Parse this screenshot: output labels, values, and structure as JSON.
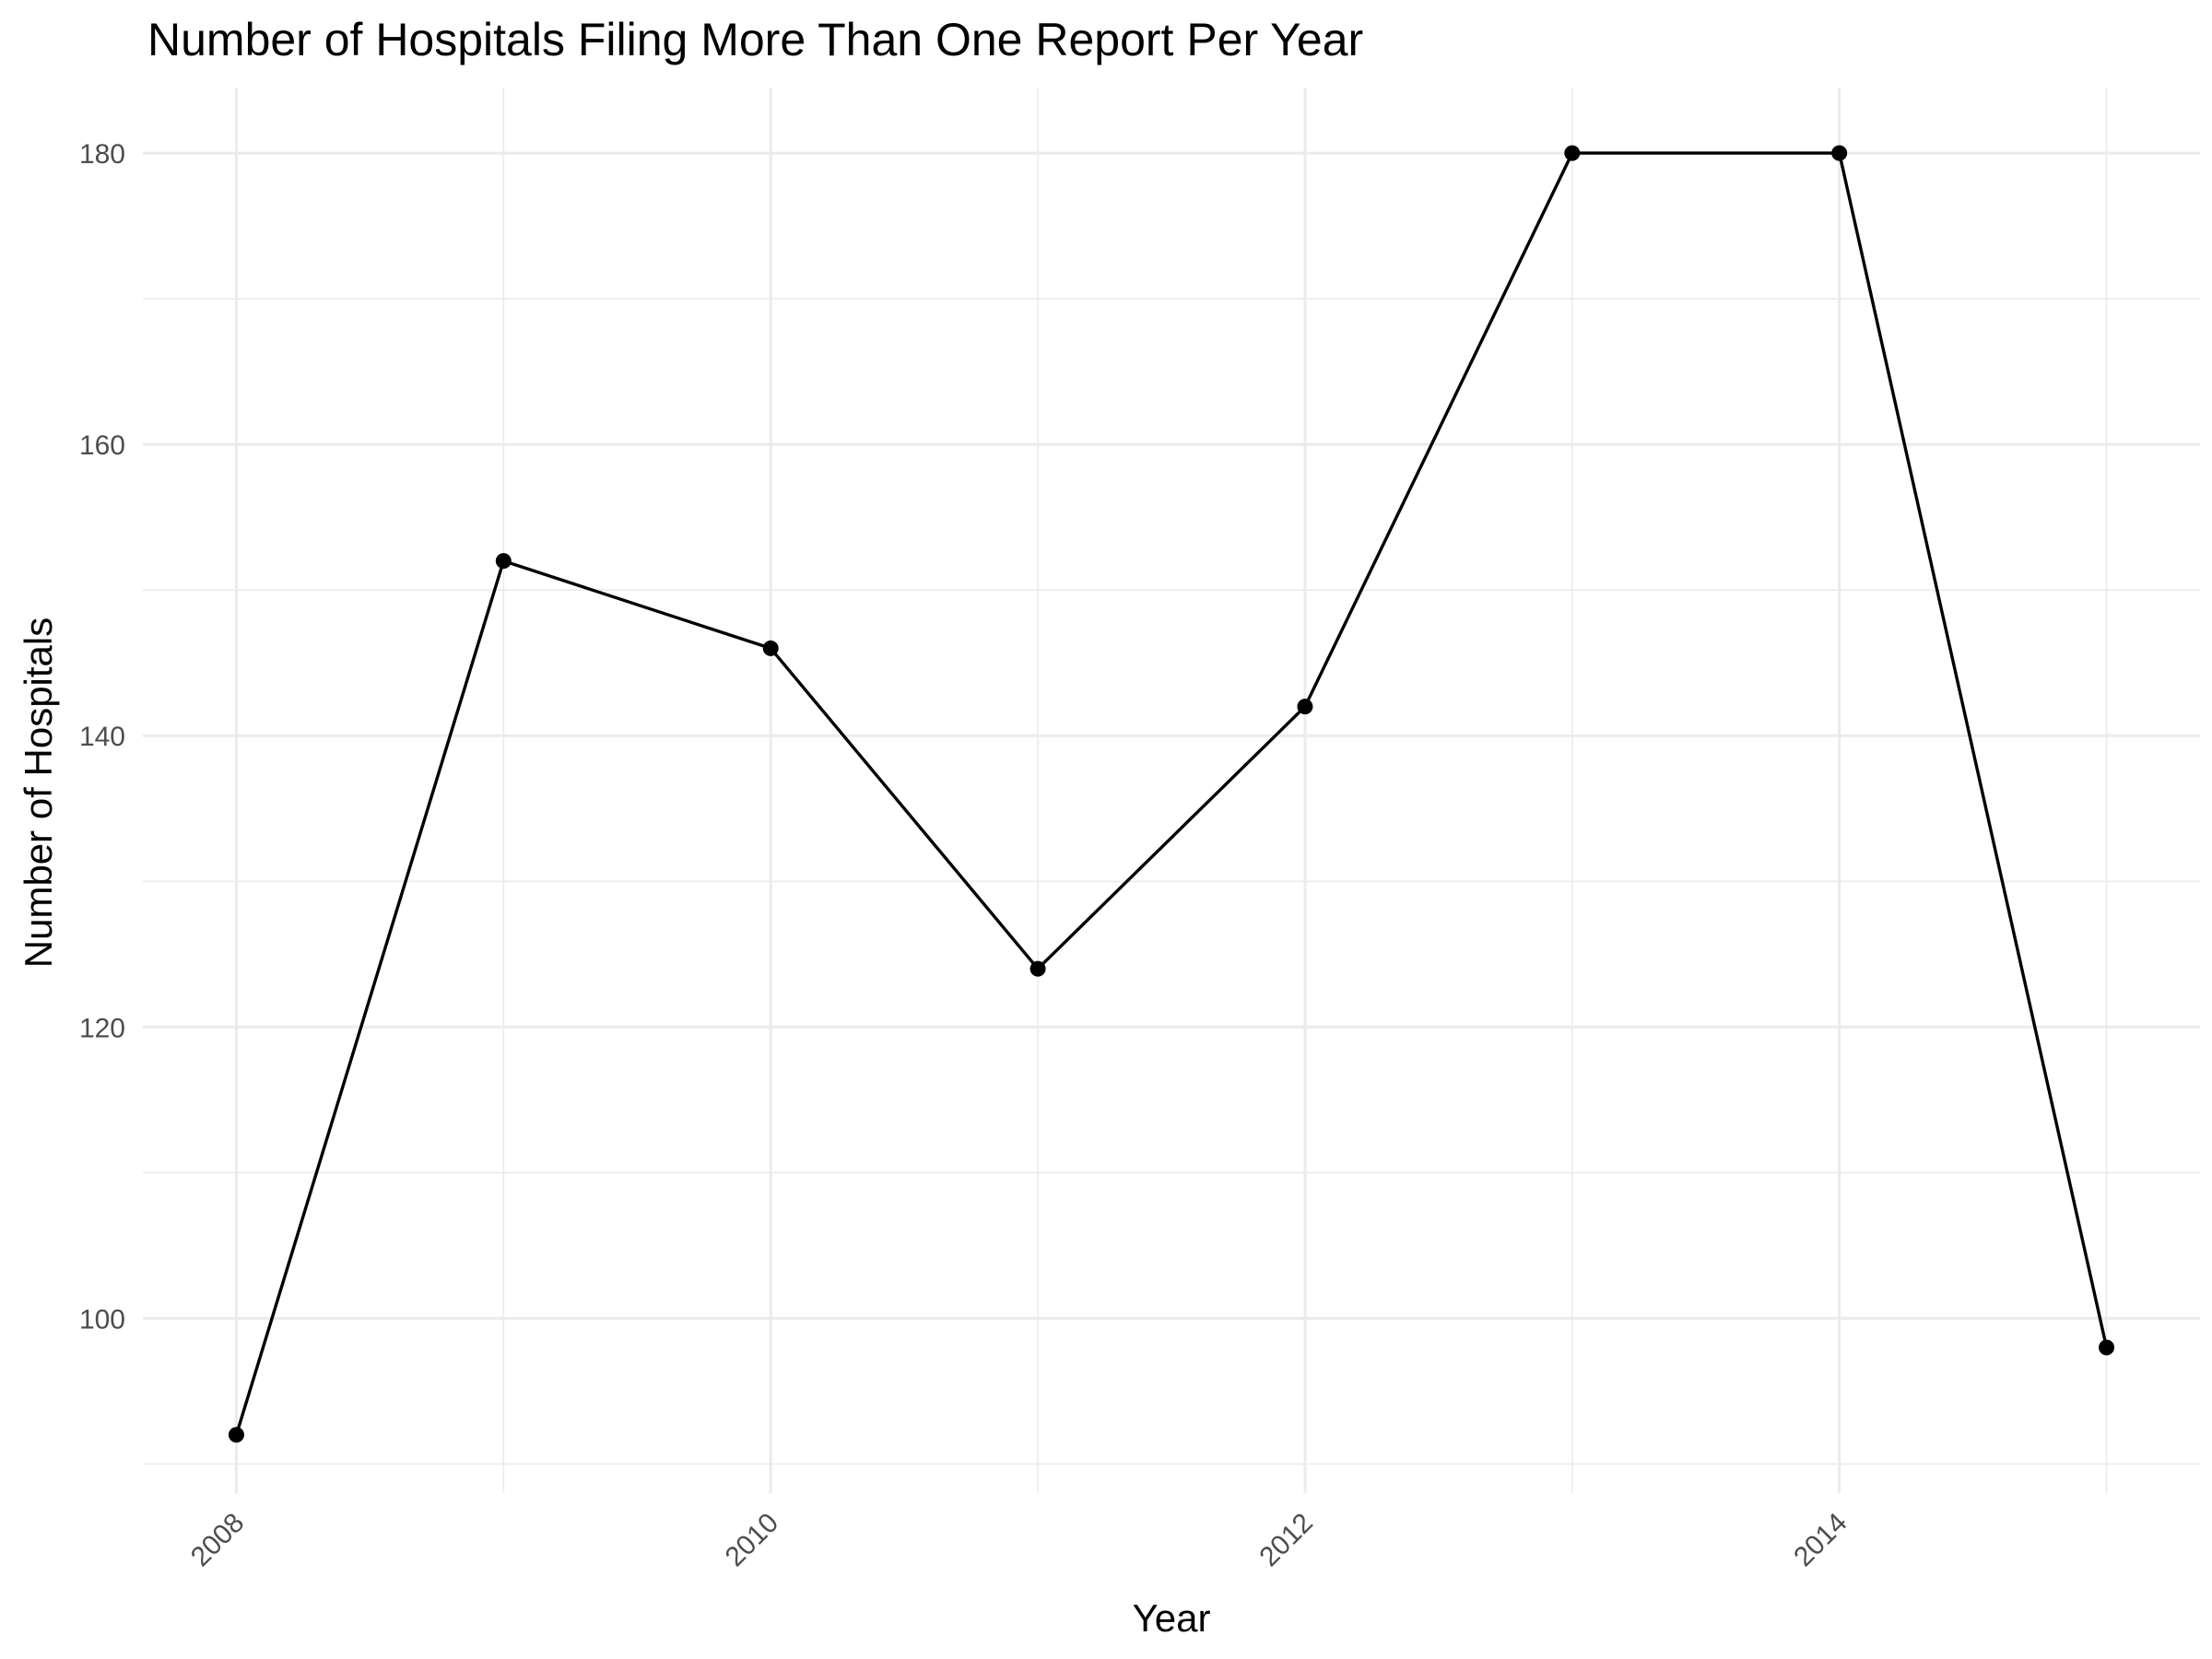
{
  "chart_data": {
    "type": "line",
    "title": "Number of Hospitals Filing More Than One Report Per Year",
    "xlabel": "Year",
    "ylabel": "Number of Hospitals",
    "x": [
      2008,
      2009,
      2010,
      2011,
      2012,
      2013,
      2014,
      2015
    ],
    "series": [
      {
        "values": [
          92,
          152,
          146,
          124,
          142,
          180,
          180,
          98
        ]
      }
    ],
    "xlim": [
      2007.65,
      2015.35
    ],
    "ylim": [
      88,
      184.5
    ],
    "x_ticks": [
      2008,
      2010,
      2012,
      2014
    ],
    "x_tick_labels": [
      "2008",
      "2010",
      "2012",
      "2014"
    ],
    "x_minor_gridlines": [
      2009,
      2011,
      2013,
      2015
    ],
    "y_ticks": [
      100,
      120,
      140,
      160,
      180
    ],
    "y_tick_labels": [
      "100",
      "120",
      "140",
      "160",
      "180"
    ],
    "y_minor_gridlines": [
      90,
      110,
      130,
      150,
      170
    ],
    "grid": true,
    "legend": "none",
    "line_color": "#000000",
    "grid_color": "#ebebeb"
  }
}
